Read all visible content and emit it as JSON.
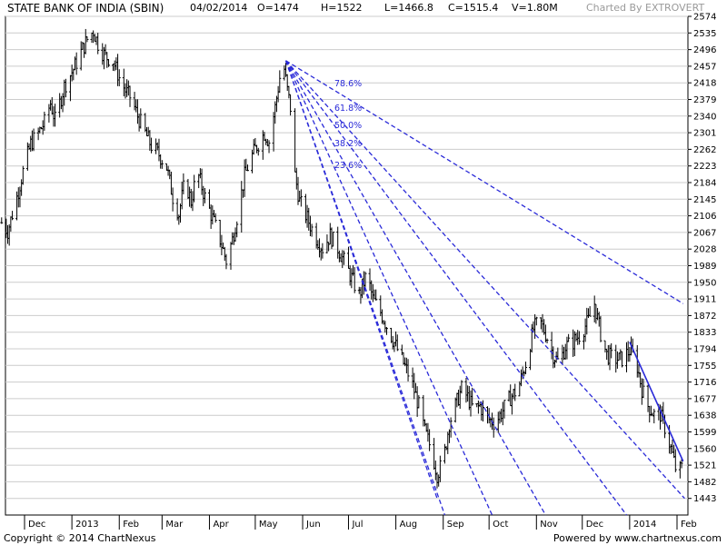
{
  "header": {
    "title": "STATE BANK OF INDIA (SBIN)",
    "date": "04/02/2014",
    "open": "O=1474",
    "high": "H=1522",
    "low": "L=1466.8",
    "close": "C=1515.4",
    "volume": "V=1.80M",
    "credit": "Charted By EXTROVERT"
  },
  "footer": {
    "copyright": "Copyright © 2014 ChartNexus",
    "powered": "Powered by www.chartnexus.com"
  },
  "colors": {
    "price_bars": "#000000",
    "fib_lines": "#2a2ad8",
    "trend_line": "#2a2ad8",
    "grid": "#cccccc",
    "axis": "#000000"
  },
  "chart_data": {
    "type": "ohlc",
    "ylim": [
      1404,
      2574
    ],
    "y_ticks": [
      1443,
      1482,
      1521,
      1560,
      1599,
      1638,
      1677,
      1716,
      1755,
      1794,
      1833,
      1872,
      1911,
      1950,
      1989,
      2028,
      2067,
      2106,
      2145,
      2184,
      2223,
      2262,
      2301,
      2340,
      2379,
      2418,
      2457,
      2496,
      2535,
      2574
    ],
    "x_ticks": [
      {
        "date": "2012-12-01",
        "label": "Dec"
      },
      {
        "date": "2013-01-01",
        "label": "2013"
      },
      {
        "date": "2013-02-01",
        "label": "Feb"
      },
      {
        "date": "2013-03-01",
        "label": "Mar"
      },
      {
        "date": "2013-04-01",
        "label": "Apr"
      },
      {
        "date": "2013-05-01",
        "label": "May"
      },
      {
        "date": "2013-06-01",
        "label": "Jun"
      },
      {
        "date": "2013-07-01",
        "label": "Jul"
      },
      {
        "date": "2013-08-01",
        "label": "Aug"
      },
      {
        "date": "2013-09-01",
        "label": "Sep"
      },
      {
        "date": "2013-10-01",
        "label": "Oct"
      },
      {
        "date": "2013-11-01",
        "label": "Nov"
      },
      {
        "date": "2013-12-01",
        "label": "Dec"
      },
      {
        "date": "2014-01-01",
        "label": "2014"
      },
      {
        "date": "2014-02-01",
        "label": "Feb"
      }
    ],
    "price_path": [
      [
        "2012-11-16",
        2090
      ],
      [
        "2012-11-20",
        2070
      ],
      [
        "2012-11-26",
        2150
      ],
      [
        "2012-11-30",
        2210
      ],
      [
        "2012-12-05",
        2275
      ],
      [
        "2012-12-10",
        2300
      ],
      [
        "2012-12-14",
        2325
      ],
      [
        "2012-12-18",
        2370
      ],
      [
        "2012-12-21",
        2330
      ],
      [
        "2012-12-27",
        2410
      ],
      [
        "2013-01-02",
        2450
      ],
      [
        "2013-01-07",
        2490
      ],
      [
        "2013-01-11",
        2520
      ],
      [
        "2013-01-15",
        2540
      ],
      [
        "2013-01-19",
        2500
      ],
      [
        "2013-01-23",
        2480
      ],
      [
        "2013-01-28",
        2470
      ],
      [
        "2013-02-01",
        2430
      ],
      [
        "2013-02-05",
        2400
      ],
      [
        "2013-02-09",
        2380
      ],
      [
        "2013-02-13",
        2340
      ],
      [
        "2013-02-18",
        2300
      ],
      [
        "2013-02-22",
        2270
      ],
      [
        "2013-02-27",
        2250
      ],
      [
        "2013-03-04",
        2220
      ],
      [
        "2013-03-08",
        2150
      ],
      [
        "2013-03-12",
        2110
      ],
      [
        "2013-03-16",
        2190
      ],
      [
        "2013-03-20",
        2140
      ],
      [
        "2013-03-24",
        2210
      ],
      [
        "2013-03-29",
        2150
      ],
      [
        "2013-04-03",
        2100
      ],
      [
        "2013-04-08",
        2050
      ],
      [
        "2013-04-12",
        2000
      ],
      [
        "2013-04-16",
        2050
      ],
      [
        "2013-04-20",
        2120
      ],
      [
        "2013-04-24",
        2200
      ],
      [
        "2013-04-28",
        2240
      ],
      [
        "2013-05-02",
        2270
      ],
      [
        "2013-05-07",
        2300
      ],
      [
        "2013-05-10",
        2280
      ],
      [
        "2013-05-14",
        2360
      ],
      [
        "2013-05-17",
        2430
      ],
      [
        "2013-05-20",
        2450
      ],
      [
        "2013-05-22",
        2400
      ],
      [
        "2013-05-24",
        2360
      ],
      [
        "2013-05-27",
        2200
      ],
      [
        "2013-05-30",
        2140
      ],
      [
        "2013-06-04",
        2100
      ],
      [
        "2013-06-09",
        2060
      ],
      [
        "2013-06-14",
        2030
      ],
      [
        "2013-06-19",
        2060
      ],
      [
        "2013-06-24",
        2030
      ],
      [
        "2013-06-28",
        2000
      ],
      [
        "2013-07-03",
        1960
      ],
      [
        "2013-07-08",
        1920
      ],
      [
        "2013-07-13",
        1970
      ],
      [
        "2013-07-17",
        1910
      ],
      [
        "2013-07-22",
        1880
      ],
      [
        "2013-07-27",
        1840
      ],
      [
        "2013-08-01",
        1800
      ],
      [
        "2013-08-06",
        1760
      ],
      [
        "2013-08-11",
        1720
      ],
      [
        "2013-08-16",
        1660
      ],
      [
        "2013-08-20",
        1600
      ],
      [
        "2013-08-24",
        1560
      ],
      [
        "2013-08-28",
        1500
      ],
      [
        "2013-09-01",
        1530
      ],
      [
        "2013-09-05",
        1620
      ],
      [
        "2013-09-09",
        1660
      ],
      [
        "2013-09-13",
        1700
      ],
      [
        "2013-09-17",
        1680
      ],
      [
        "2013-09-21",
        1650
      ],
      [
        "2013-09-25",
        1660
      ],
      [
        "2013-09-30",
        1630
      ],
      [
        "2013-10-05",
        1620
      ],
      [
        "2013-10-10",
        1650
      ],
      [
        "2013-10-15",
        1680
      ],
      [
        "2013-10-20",
        1700
      ],
      [
        "2013-10-25",
        1760
      ],
      [
        "2013-10-30",
        1840
      ],
      [
        "2013-11-03",
        1860
      ],
      [
        "2013-11-07",
        1830
      ],
      [
        "2013-11-12",
        1780
      ],
      [
        "2013-11-16",
        1760
      ],
      [
        "2013-11-20",
        1800
      ],
      [
        "2013-11-25",
        1810
      ],
      [
        "2013-11-30",
        1830
      ],
      [
        "2013-12-05",
        1860
      ],
      [
        "2013-12-09",
        1900
      ],
      [
        "2013-12-13",
        1830
      ],
      [
        "2013-12-17",
        1780
      ],
      [
        "2013-12-22",
        1770
      ],
      [
        "2013-12-27",
        1770
      ],
      [
        "2014-01-01",
        1790
      ],
      [
        "2014-01-05",
        1770
      ],
      [
        "2014-01-09",
        1700
      ],
      [
        "2014-01-13",
        1660
      ],
      [
        "2014-01-17",
        1640
      ],
      [
        "2014-01-21",
        1640
      ],
      [
        "2014-01-25",
        1600
      ],
      [
        "2014-01-28",
        1560
      ],
      [
        "2014-02-01",
        1500
      ],
      [
        "2014-02-04",
        1515
      ]
    ],
    "fib_origin": [
      "2013-05-21",
      2470
    ],
    "fib_fan": [
      {
        "label": "78.6%",
        "to": [
          "2014-02-05",
          1900
        ]
      },
      {
        "label": "61.8%",
        "to": [
          "2014-02-06",
          1443
        ]
      },
      {
        "label": "50.0%",
        "to": [
          "2013-12-30",
          1404
        ]
      },
      {
        "label": "38.2%",
        "to": [
          "2013-11-07",
          1404
        ]
      },
      {
        "label": "23.6%",
        "to": [
          "2013-10-03",
          1404
        ]
      },
      {
        "label": "",
        "to": [
          "2013-09-02",
          1404
        ]
      },
      {
        "label": "",
        "to": [
          "2013-08-28",
          1443
        ]
      }
    ],
    "trend_line": [
      [
        "2014-01-01",
        1810
      ],
      [
        "2014-02-05",
        1530
      ]
    ]
  }
}
